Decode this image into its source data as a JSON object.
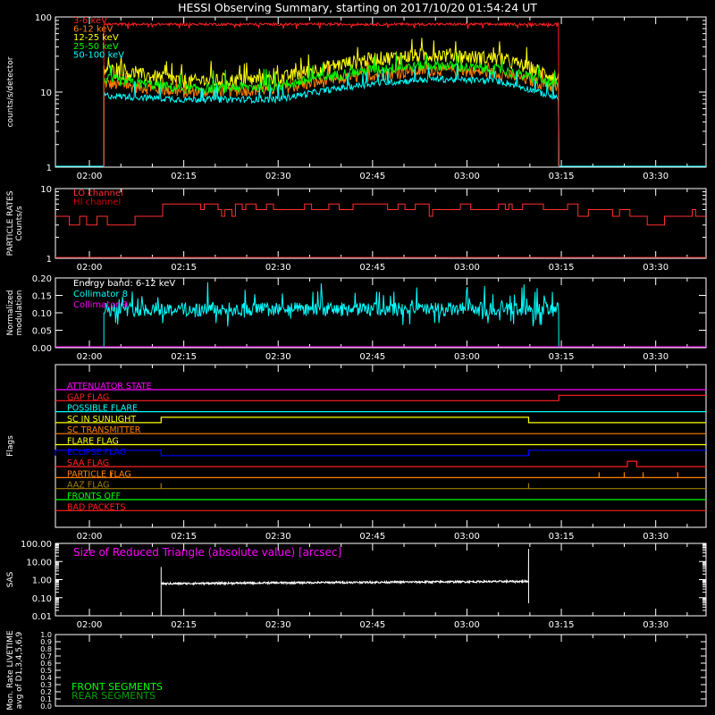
{
  "title": "HESSI Observing Summary, starting on 2017/10/20 01:54:24 UT",
  "time_ticks": [
    "02:00",
    "02:15",
    "02:30",
    "02:45",
    "03:00",
    "03:15",
    "03:30"
  ],
  "time_ticks_minutes": [
    0,
    15,
    30,
    45,
    60,
    75,
    90
  ],
  "time_range_minutes": [
    -5.4,
    98
  ],
  "colors": {
    "3-6": "#ff2020",
    "6-12": "#ff8000",
    "12-25": "#ffff00",
    "25-50": "#00ff00",
    "50-100": "#00ffff",
    "lo": "#ff3030",
    "hi": "#d00000",
    "coll8": "#00ffff",
    "coll9": "#ff00ff",
    "white": "#ffffff",
    "front": "#00ff00",
    "rear": "#00a000"
  },
  "chart_data": [
    {
      "id": "counts",
      "type": "line",
      "ylabel": "counts/s/detector",
      "yscale": "log",
      "ylim": [
        1,
        100
      ],
      "ytick_labels": [
        "1",
        "10",
        "100"
      ],
      "data_window_minutes": [
        2.3,
        74.6
      ],
      "legend": [
        "3-6 keV",
        "6-12 keV",
        "12-25 keV",
        "25-50 keV",
        "50-100 keV"
      ],
      "series": [
        {
          "name": "3-6 keV",
          "x": [
            2.3,
            30,
            50,
            74.6
          ],
          "y": [
            80,
            80,
            80,
            80
          ]
        },
        {
          "name": "6-12 keV",
          "x": [
            2.3,
            15,
            30,
            45,
            55,
            65,
            74.6
          ],
          "y": [
            13,
            10,
            11,
            17,
            20,
            18,
            11
          ]
        },
        {
          "name": "12-25 keV",
          "x": [
            2.3,
            15,
            30,
            45,
            55,
            65,
            74.6
          ],
          "y": [
            20,
            14,
            15,
            28,
            32,
            28,
            15
          ]
        },
        {
          "name": "25-50 keV",
          "x": [
            2.3,
            15,
            30,
            45,
            55,
            65,
            74.6
          ],
          "y": [
            15,
            11,
            12,
            20,
            23,
            20,
            12
          ]
        },
        {
          "name": "50-100 keV",
          "x": [
            2.3,
            15,
            30,
            45,
            55,
            65,
            74.6
          ],
          "y": [
            9,
            8,
            8,
            13,
            15,
            14,
            8
          ]
        }
      ]
    },
    {
      "id": "particle",
      "type": "line",
      "ylabel": "PARTICLE RATES\nCounts/s",
      "yscale": "log",
      "ylim": [
        1,
        10
      ],
      "ytick_labels": [
        "1",
        "10"
      ],
      "legend": [
        "LO channel",
        "HI channel"
      ],
      "series": [
        {
          "name": "LO channel",
          "levels": [
            3,
            4,
            6,
            5,
            4
          ]
        },
        {
          "name": "HI channel",
          "x": [
            -5.4,
            98
          ],
          "y": [
            1,
            1
          ]
        }
      ]
    },
    {
      "id": "modulation",
      "type": "line",
      "ylabel": "Normalized\nmodulation",
      "ylim": [
        0,
        0.2
      ],
      "ytick_labels": [
        "0.00",
        "0.05",
        "0.10",
        "0.15",
        "0.20"
      ],
      "annotation": "Energy band: 6-12 keV",
      "legend": [
        "Collimator 8",
        "Collimator 9"
      ],
      "series": [
        {
          "name": "Collimator 8",
          "x": [
            2.3,
            74.6
          ],
          "y": [
            0.11,
            0.11
          ]
        },
        {
          "name": "Collimator 9",
          "x": [
            -5.4,
            98
          ],
          "y": [
            0,
            0
          ]
        }
      ]
    },
    {
      "id": "flags",
      "type": "line",
      "ylabel": "Flags",
      "flags": [
        {
          "name": "ATTENUATOR STATE",
          "color": "#ff00ff"
        },
        {
          "name": "GAP FLAG",
          "color": "#ff2020",
          "on": [
            [
              74.6,
              98
            ]
          ]
        },
        {
          "name": "POSSIBLE FLARE",
          "color": "#00ffff"
        },
        {
          "name": "SC IN SUNLIGHT",
          "color": "#ffff00",
          "on": [
            [
              11.4,
              69.8
            ]
          ]
        },
        {
          "name": "SC TRANSMITTER",
          "color": "#ff8000"
        },
        {
          "name": "FLARE FLAG",
          "color": "#ffff00"
        },
        {
          "name": "ECLIPSE FLAG",
          "color": "#0000ff",
          "on": [
            [
              -5.4,
              11.4
            ],
            [
              69.8,
              98
            ]
          ]
        },
        {
          "name": "SAA FLAG",
          "color": "#ff2020",
          "on": [
            [
              85.5,
              87
            ]
          ]
        },
        {
          "name": "PARTICLE FLAG",
          "color": "#ff8000",
          "spikes": [
            3.5,
            81,
            85,
            88,
            93.5
          ]
        },
        {
          "name": "AAZ FLAG",
          "color": "#a08000",
          "spikes": [
            11.4,
            69.8
          ]
        },
        {
          "name": "FRONTS OFF",
          "color": "#00ff00"
        },
        {
          "name": "BAD PACKETS",
          "color": "#ff2020"
        }
      ]
    },
    {
      "id": "sas",
      "type": "line",
      "ylabel": "SAS",
      "yscale": "log",
      "ylim": [
        0.01,
        100
      ],
      "ytick_labels": [
        "0.01",
        "0.10",
        "1.00",
        "10.00",
        "100.00"
      ],
      "annotation": "Size of Reduced Triangle (absolute value) [arcsec]",
      "series": [
        {
          "name": "Size of Reduced Triangle",
          "x": [
            11.4,
            69.8
          ],
          "y": [
            0.6,
            0.8
          ]
        }
      ]
    },
    {
      "id": "livetime",
      "type": "line",
      "ylabel": "Mon. Rate LIVETIME\navg of D1,3,4,5,6,9",
      "ylim": [
        0,
        1
      ],
      "ytick_labels": [
        "0.0",
        "0.1",
        "0.2",
        "0.3",
        "0.4",
        "0.5",
        "0.6",
        "0.7",
        "0.8",
        "0.9",
        "1.0"
      ],
      "legend": [
        "FRONT SEGMENTS",
        "REAR SEGMENTS"
      ],
      "series": []
    }
  ]
}
